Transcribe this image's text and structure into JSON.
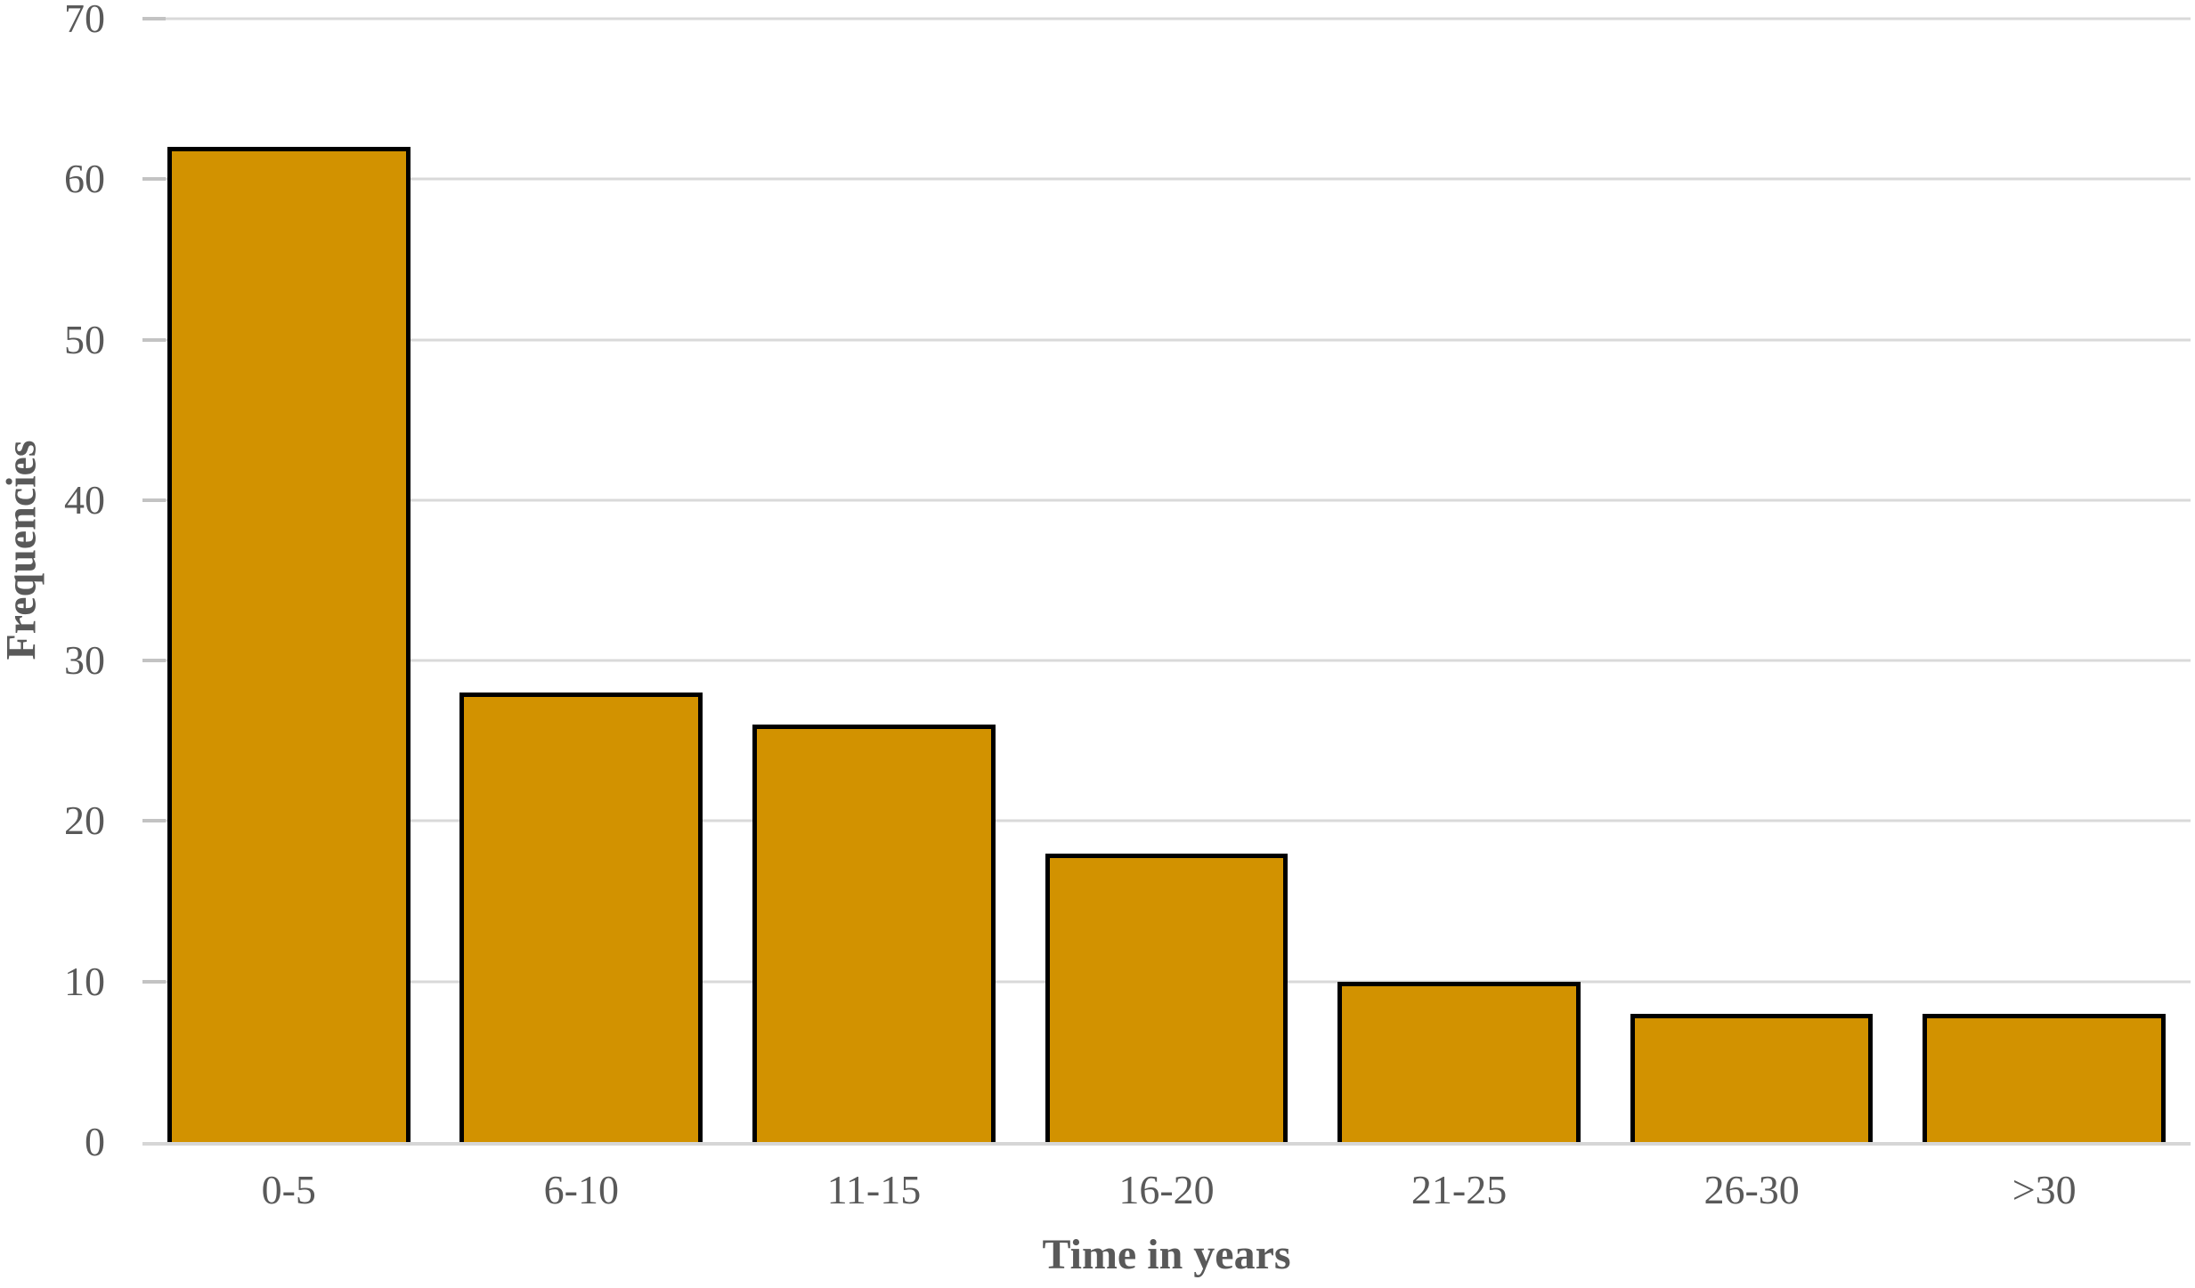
{
  "chart_data": {
    "type": "bar",
    "title": "",
    "categories": [
      "0-5",
      "6-10",
      "11-15",
      "16-20",
      "21-25",
      "26-30",
      ">30"
    ],
    "values": [
      62,
      28,
      26,
      18,
      10,
      8,
      8
    ],
    "xlabel": "Time in years",
    "ylabel": "Frequencies",
    "ylim": [
      0,
      70
    ],
    "yticks": [
      0,
      10,
      20,
      30,
      40,
      50,
      60,
      70
    ],
    "grid": "horizontal-only",
    "legend": "none",
    "colors": {
      "bar_fill": "#d29200",
      "bar_border": "#000000",
      "gridline": "#d9d9d9",
      "axis_line": "#d6d6d6",
      "label_text": "#595959",
      "background": "#ffffff"
    }
  }
}
